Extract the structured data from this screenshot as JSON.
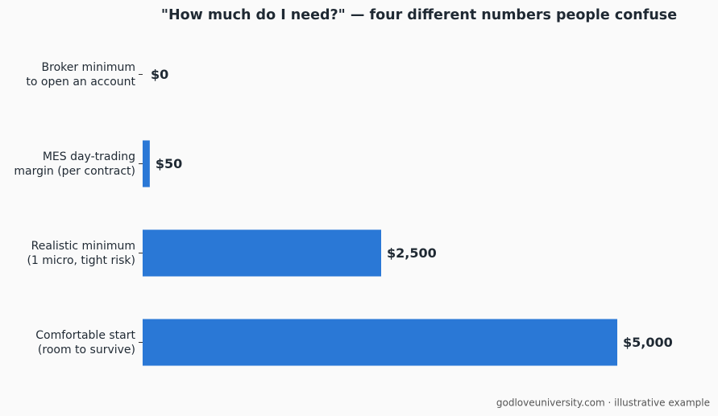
{
  "chart_data": {
    "type": "barh",
    "title": "\"How much do I need?\" — four different numbers people confuse",
    "categories": [
      "Broker minimum\nto open an account",
      "MES day-trading\nmargin (per contract)",
      "Realistic minimum\n(1 micro, tight risk)",
      "Comfortable start\n(room to survive)"
    ],
    "values": [
      0,
      50,
      2500,
      5000
    ],
    "value_labels": [
      "$0",
      "$50",
      "$2,500",
      "$5,000"
    ],
    "color": "#2a78d6",
    "xlim": [
      0,
      5000
    ],
    "footnote": "godloveuniversity.com · illustrative example"
  }
}
